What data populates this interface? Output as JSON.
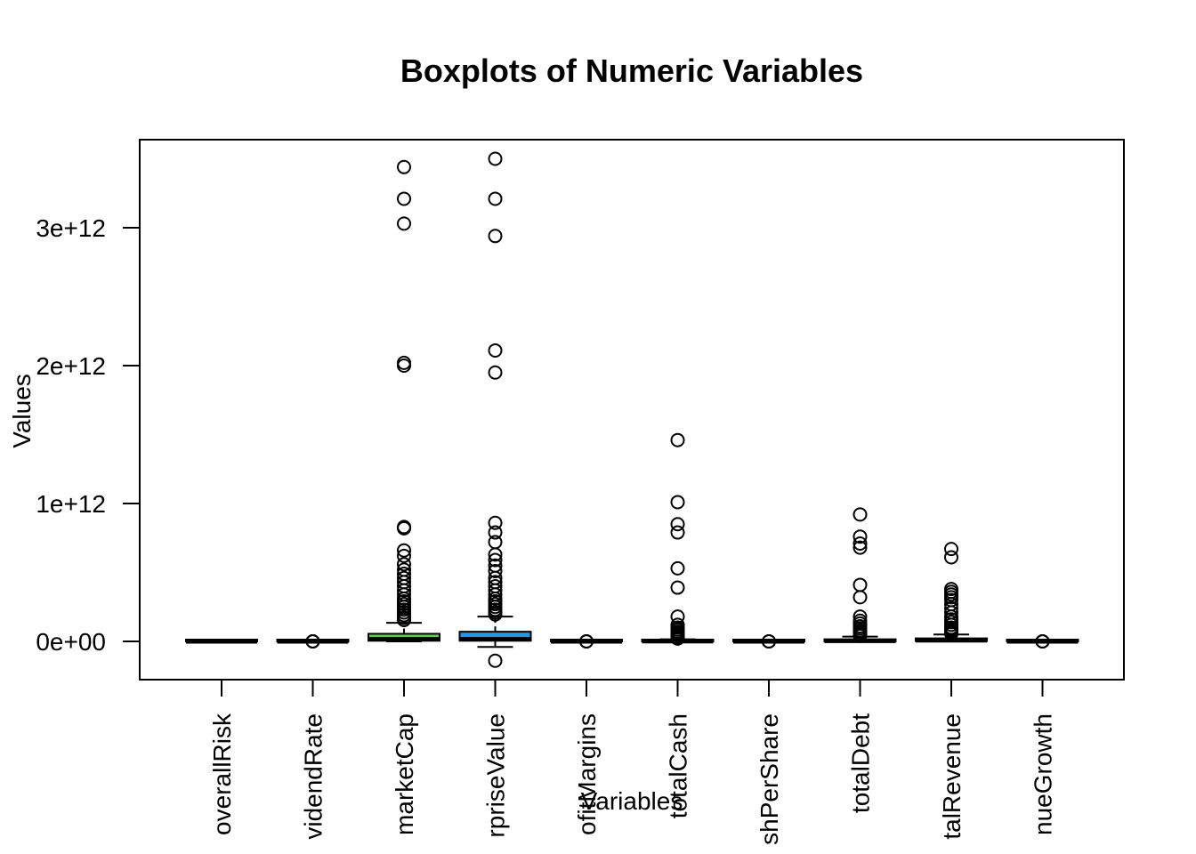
{
  "chart_data": {
    "type": "box",
    "title": "Boxplots of Numeric Variables",
    "xlabel": "Variables",
    "ylabel": "Values",
    "ylim": [
      -280000000000,
      3630000000000
    ],
    "yticks": [
      0,
      1000000000000,
      2000000000000,
      3000000000000
    ],
    "ytick_labels": [
      "0e+00",
      "1e+12",
      "2e+12",
      "3e+12"
    ],
    "categories": [
      "overallRisk",
      "dividendRate",
      "marketCap",
      "enterpriseValue",
      "profitMargins",
      "totalCash",
      "totalCashPerShare",
      "totalDebt",
      "totalRevenue",
      "revenueGrowth"
    ],
    "category_labels_visible": [
      "overallRisk",
      "videndRate",
      "marketCap",
      "rpriseValue",
      "ofitMargins",
      "totalCash",
      "shPerShare",
      "totalDebt",
      "talRevenue",
      "nueGrowth"
    ],
    "box_colors": [
      "#000000",
      "#DF536B",
      "#61D04F",
      "#2297E6",
      "#28E2E5",
      "#CD0BBC",
      "#F5C710",
      "#9E9E9E",
      "#000000",
      "#DF536B"
    ],
    "boxes": [
      {
        "q1": 0,
        "median": 0,
        "q3": 0,
        "whisker_low": 0,
        "whisker_high": 0,
        "outliers": []
      },
      {
        "q1": 0,
        "median": 0,
        "q3": 0,
        "whisker_low": 0,
        "whisker_high": 0,
        "outliers": [
          1,
          2,
          3,
          4
        ]
      },
      {
        "q1": 5000000000,
        "median": 15000000000,
        "q3": 55000000000,
        "whisker_low": 0,
        "whisker_high": 135000000000,
        "outliers": [
          3440000000000,
          3210000000000,
          3030000000000,
          2020000000000,
          2000000000000,
          830000000000,
          820000000000,
          660000000000,
          620000000000,
          560000000000,
          520000000000,
          490000000000,
          460000000000,
          430000000000,
          400000000000,
          370000000000,
          340000000000,
          310000000000,
          290000000000,
          270000000000,
          250000000000,
          230000000000,
          210000000000,
          190000000000,
          170000000000,
          155000000000
        ]
      },
      {
        "q1": 5000000000,
        "median": 15000000000,
        "q3": 70000000000,
        "whisker_low": -40000000000,
        "whisker_high": 180000000000,
        "outliers": [
          3500000000000,
          3210000000000,
          2940000000000,
          2110000000000,
          1950000000000,
          -140000000000,
          860000000000,
          790000000000,
          720000000000,
          630000000000,
          590000000000,
          550000000000,
          510000000000,
          460000000000,
          430000000000,
          400000000000,
          370000000000,
          340000000000,
          310000000000,
          290000000000,
          270000000000,
          250000000000,
          230000000000,
          210000000000,
          195000000000
        ]
      },
      {
        "q1": 0,
        "median": 0,
        "q3": 0,
        "whisker_low": 0,
        "whisker_high": 0,
        "outliers": [
          1,
          2,
          3
        ]
      },
      {
        "q1": 0,
        "median": 2000000000,
        "q3": 7000000000,
        "whisker_low": 0,
        "whisker_high": 15000000000,
        "outliers": [
          1460000000000,
          1010000000000,
          850000000000,
          790000000000,
          530000000000,
          390000000000,
          180000000000,
          120000000000,
          100000000000,
          85000000000,
          70000000000,
          58000000000,
          48000000000,
          40000000000,
          32000000000,
          25000000000,
          20000000000
        ]
      },
      {
        "q1": 0,
        "median": 0,
        "q3": 0,
        "whisker_low": 0,
        "whisker_high": 0,
        "outliers": [
          1,
          2,
          3
        ]
      },
      {
        "q1": 1000000000,
        "median": 4000000000,
        "q3": 15000000000,
        "whisker_low": 0,
        "whisker_high": 35000000000,
        "outliers": [
          920000000000,
          760000000000,
          710000000000,
          680000000000,
          410000000000,
          320000000000,
          180000000000,
          150000000000,
          130000000000,
          110000000000,
          95000000000,
          80000000000,
          68000000000,
          56000000000,
          46000000000,
          40000000000
        ]
      },
      {
        "q1": 3000000000,
        "median": 8000000000,
        "q3": 22000000000,
        "whisker_low": 0,
        "whisker_high": 50000000000,
        "outliers": [
          670000000000,
          610000000000,
          380000000000,
          360000000000,
          340000000000,
          320000000000,
          300000000000,
          270000000000,
          240000000000,
          210000000000,
          180000000000,
          160000000000,
          140000000000,
          120000000000,
          100000000000,
          90000000000,
          78000000000,
          66000000000,
          56000000000
        ]
      },
      {
        "q1": 0,
        "median": 0,
        "q3": 0,
        "whisker_low": 0,
        "whisker_high": 0,
        "outliers": [
          1,
          2,
          3
        ]
      }
    ]
  }
}
